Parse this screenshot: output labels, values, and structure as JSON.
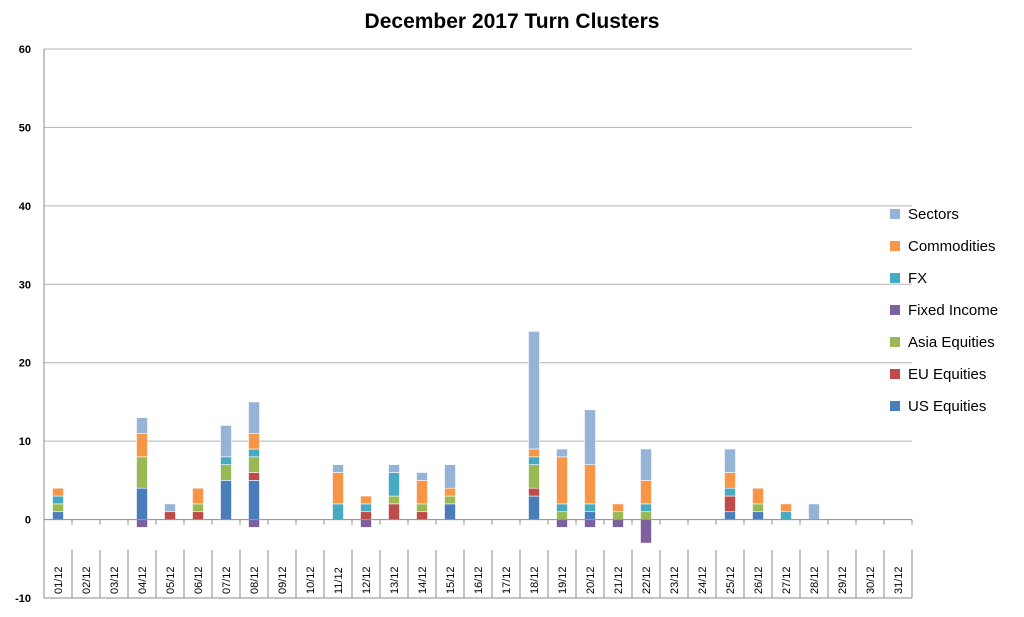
{
  "chart_data": {
    "type": "bar",
    "stacked": true,
    "title": "December 2017 Turn Clusters",
    "xlabel": "",
    "ylabel": "",
    "ylim": [
      -10,
      60
    ],
    "yticks": [
      -10,
      0,
      10,
      20,
      30,
      40,
      50,
      60
    ],
    "grid": true,
    "legend_position": "right",
    "categories": [
      "01/12",
      "02/12",
      "03/12",
      "04/12",
      "05/12",
      "06/12",
      "07/12",
      "08/12",
      "09/12",
      "10/12",
      "11/12",
      "12/12",
      "13/12",
      "14/12",
      "15/12",
      "16/12",
      "17/12",
      "18/12",
      "19/12",
      "20/12",
      "21/12",
      "22/12",
      "23/12",
      "24/12",
      "25/12",
      "26/12",
      "27/12",
      "28/12",
      "29/12",
      "30/12",
      "31/12"
    ],
    "series": [
      {
        "name": "US Equities",
        "color": "#4a7ebb",
        "values": [
          1,
          0,
          0,
          4,
          0,
          0,
          5,
          5,
          0,
          0,
          0,
          0,
          0,
          0,
          2,
          0,
          0,
          3,
          0,
          1,
          0,
          0,
          0,
          0,
          1,
          1,
          0,
          0,
          0,
          0,
          0
        ]
      },
      {
        "name": "EU Equities",
        "color": "#be4b48",
        "values": [
          0,
          0,
          0,
          0,
          1,
          1,
          0,
          1,
          0,
          0,
          0,
          1,
          2,
          1,
          0,
          0,
          0,
          1,
          0,
          0,
          0,
          0,
          0,
          0,
          2,
          0,
          0,
          0,
          0,
          0,
          0
        ]
      },
      {
        "name": "Asia Equities",
        "color": "#98b954",
        "values": [
          1,
          0,
          0,
          4,
          0,
          1,
          2,
          2,
          0,
          0,
          0,
          0,
          1,
          1,
          1,
          0,
          0,
          3,
          1,
          0,
          1,
          1,
          0,
          0,
          0,
          1,
          0,
          0,
          0,
          0,
          0
        ]
      },
      {
        "name": "Fixed Income",
        "color": "#7d60a0",
        "values": [
          0,
          0,
          0,
          -1,
          0,
          0,
          0,
          -1,
          0,
          0,
          0,
          -1,
          0,
          0,
          0,
          0,
          0,
          0,
          -1,
          -1,
          -1,
          -3,
          0,
          0,
          0,
          0,
          0,
          0,
          0,
          0,
          0
        ]
      },
      {
        "name": "FX",
        "color": "#46aac5",
        "values": [
          1,
          0,
          0,
          0,
          0,
          0,
          1,
          1,
          0,
          0,
          2,
          1,
          3,
          0,
          0,
          0,
          0,
          1,
          1,
          1,
          0,
          1,
          0,
          0,
          1,
          0,
          1,
          0,
          0,
          0,
          0
        ]
      },
      {
        "name": "Commodities",
        "color": "#f79646",
        "values": [
          1,
          0,
          0,
          3,
          0,
          2,
          0,
          2,
          0,
          0,
          4,
          1,
          0,
          3,
          1,
          0,
          0,
          1,
          6,
          5,
          1,
          3,
          0,
          0,
          2,
          2,
          1,
          0,
          0,
          0,
          0
        ]
      },
      {
        "name": "Sectors",
        "color": "#95b3d7",
        "values": [
          0,
          0,
          0,
          2,
          1,
          0,
          4,
          4,
          0,
          0,
          1,
          0,
          1,
          1,
          3,
          0,
          0,
          15,
          1,
          7,
          0,
          4,
          0,
          0,
          3,
          0,
          0,
          2,
          0,
          0,
          0
        ]
      }
    ]
  }
}
